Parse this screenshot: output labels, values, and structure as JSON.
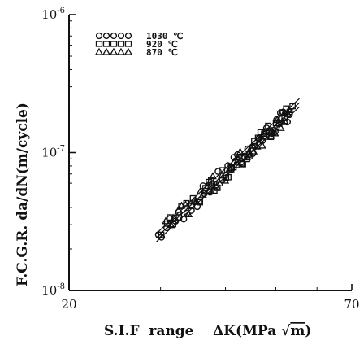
{
  "chart_data": {
    "type": "scatter",
    "x_scale": "log",
    "y_scale": "log",
    "xlim": [
      20,
      70
    ],
    "ylim": [
      1e-08,
      1e-06
    ],
    "x_tick_labels": [
      {
        "value": 20,
        "text": "20"
      },
      {
        "value": 70,
        "text": "70"
      }
    ],
    "y_tick_labels": [
      {
        "value": 1e-06,
        "base": "10",
        "exp": "-6"
      },
      {
        "value": 1e-07,
        "base": "10",
        "exp": "-7"
      },
      {
        "value": 1e-08,
        "base": "10",
        "exp": "-8"
      }
    ],
    "xlabel_parts": {
      "prefix": "S.I.F  range    ΔK(MPa ",
      "sqrt": "m",
      "suffix": ")"
    },
    "ylabel": "F.C.G.R.   da/dN(m/cycle)",
    "legend_position": "top-left",
    "series": [
      {
        "name": "1030 ℃",
        "marker": "circle",
        "x_range": [
          29.5,
          53.5
        ]
      },
      {
        "name": "920 ℃",
        "marker": "square",
        "x_range": [
          30,
          54
        ]
      },
      {
        "name": "870 ℃",
        "marker": "triangle",
        "x_range": [
          30.5,
          53.5
        ]
      }
    ],
    "trend": {
      "x": [
        29.4,
        55.5
      ],
      "y": [
        2.4e-08,
        2.3e-07
      ]
    }
  }
}
